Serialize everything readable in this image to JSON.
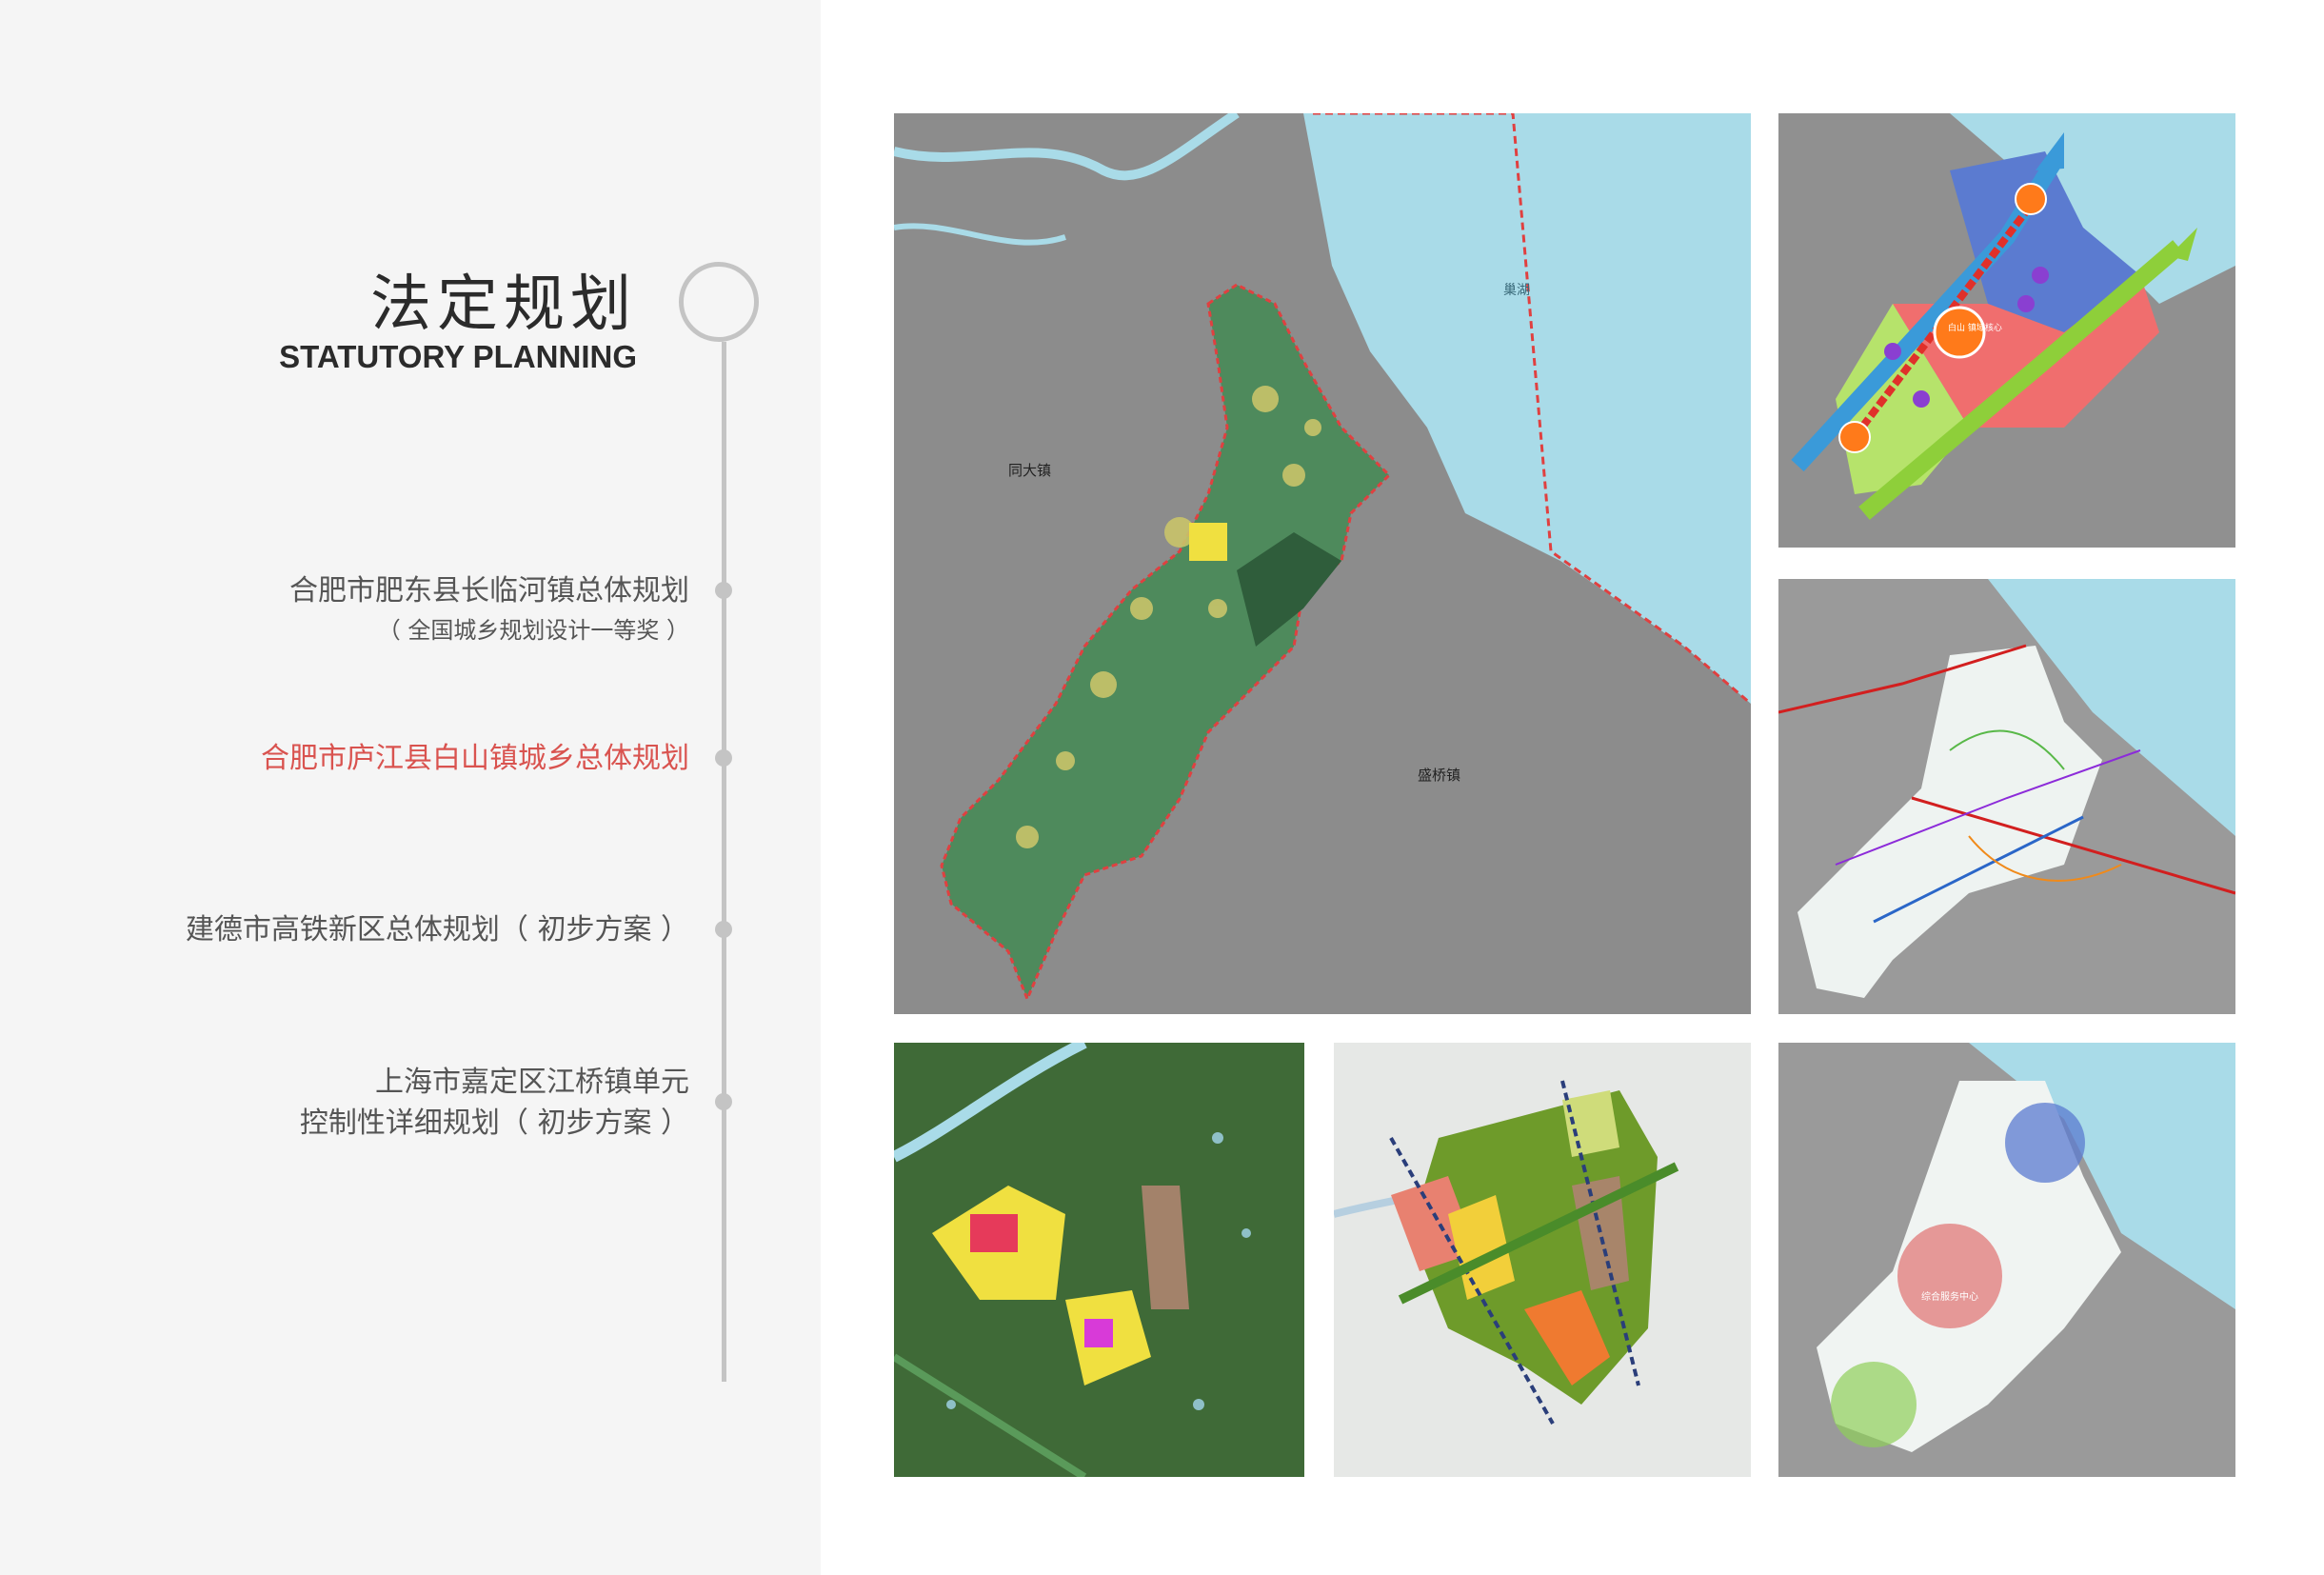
{
  "header": {
    "title_cn": "法定规划",
    "title_en": "STATUTORY PLANNING"
  },
  "nav": {
    "items": [
      {
        "label": "合肥市肥东县长临河镇总体规划",
        "sub": "（ 全国城乡规划设计一等奖 ）",
        "active": false
      },
      {
        "label": "合肥市庐江县白山镇城乡总体规划",
        "active": true
      },
      {
        "label": "建德市高铁新区总体规划（ 初步方案 ）",
        "active": false
      },
      {
        "label": "上海市嘉定区江桥镇单元",
        "label2": "控制性详细规划（ 初步方案 ）",
        "active": false
      }
    ]
  },
  "maps": {
    "main": {
      "lake_label": "巢湖",
      "town_west": "同大镇",
      "town_east": "盛桥镇"
    },
    "structure": {
      "core_label": "白山\n镇域核心"
    },
    "services": {
      "center_label": "综合服务中心"
    }
  },
  "colors": {
    "accent_red": "#d9534f",
    "text_gray": "#555555",
    "timeline_gray": "#c4c4c4",
    "water_blue": "#a9dbe8",
    "land_gray": "#8f8f8f",
    "green_area": "#4e8a5c"
  }
}
